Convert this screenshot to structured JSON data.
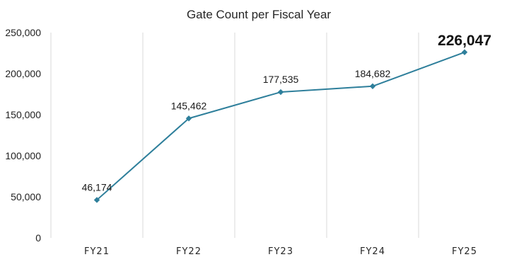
{
  "chart_data": {
    "type": "line",
    "title": "Gate Count per Fiscal Year",
    "categories": [
      "FY21",
      "FY22",
      "FY23",
      "FY24",
      "FY25"
    ],
    "series": [
      {
        "values": [
          46174,
          145462,
          177535,
          184682,
          226047
        ],
        "data_labels": [
          "46,174",
          "145,462",
          "177,535",
          "184,682",
          "226,047"
        ],
        "color": "#2e7f9b"
      }
    ],
    "ylim": [
      0,
      250000
    ],
    "yticks": [
      0,
      50000,
      100000,
      150000,
      200000,
      250000
    ],
    "ytick_labels": [
      "0",
      "50,000",
      "100,000",
      "150,000",
      "200,000",
      "250,000"
    ],
    "xlabel": "",
    "ylabel": "",
    "grid": "vertical",
    "grid_color": "#d9d9d9",
    "emphasized_label": "226,047",
    "marker": "diamond"
  }
}
